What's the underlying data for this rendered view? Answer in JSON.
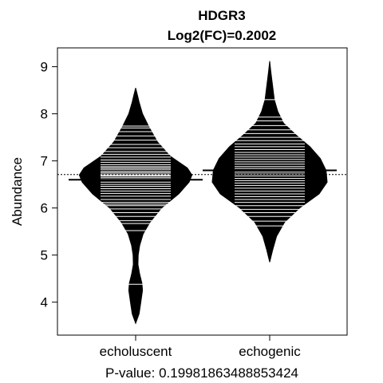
{
  "chart_data": {
    "type": "beanplot",
    "title": "HDGR3",
    "subtitle": "Log2(FC)=0.2002",
    "xlabel": "P-value: 0.19981863488853424",
    "ylabel": "Abundance",
    "ylim": [
      3.3,
      9.4
    ],
    "yticks": [
      4,
      5,
      6,
      7,
      8,
      9
    ],
    "categories": [
      "echoluscent",
      "echogenic"
    ],
    "overall_mean": 6.71,
    "groups": [
      {
        "name": "echoluscent",
        "mean": 6.6,
        "density": [
          [
            3.55,
            0.0
          ],
          [
            3.75,
            0.06
          ],
          [
            4.0,
            0.09
          ],
          [
            4.25,
            0.12
          ],
          [
            4.4,
            0.11
          ],
          [
            4.6,
            0.07
          ],
          [
            4.8,
            0.04
          ],
          [
            5.0,
            0.045
          ],
          [
            5.2,
            0.07
          ],
          [
            5.45,
            0.13
          ],
          [
            5.7,
            0.25
          ],
          [
            6.0,
            0.45
          ],
          [
            6.3,
            0.75
          ],
          [
            6.55,
            0.93
          ],
          [
            6.7,
            0.98
          ],
          [
            6.85,
            0.9
          ],
          [
            7.1,
            0.6
          ],
          [
            7.4,
            0.38
          ],
          [
            7.7,
            0.24
          ],
          [
            8.0,
            0.12
          ],
          [
            8.25,
            0.06
          ],
          [
            8.4,
            0.03
          ],
          [
            8.55,
            0.0
          ]
        ],
        "values": [
          4.38,
          5.52,
          5.67,
          5.73,
          5.82,
          5.9,
          5.98,
          6.05,
          6.08,
          6.12,
          6.18,
          6.25,
          6.31,
          6.36,
          6.41,
          6.46,
          6.5,
          6.55,
          6.6,
          6.62,
          6.65,
          6.68,
          6.7,
          6.72,
          6.75,
          6.78,
          6.82,
          6.85,
          6.88,
          6.92,
          6.97,
          7.02,
          7.08,
          7.14,
          7.2,
          7.28,
          7.35,
          7.44,
          7.53,
          7.62,
          7.7,
          7.74
        ]
      },
      {
        "name": "echogenic",
        "mean": 6.8,
        "density": [
          [
            4.85,
            0.0
          ],
          [
            5.1,
            0.05
          ],
          [
            5.4,
            0.12
          ],
          [
            5.7,
            0.26
          ],
          [
            6.0,
            0.52
          ],
          [
            6.3,
            0.86
          ],
          [
            6.55,
            1.0
          ],
          [
            6.8,
            0.98
          ],
          [
            7.05,
            0.88
          ],
          [
            7.3,
            0.7
          ],
          [
            7.55,
            0.46
          ],
          [
            7.8,
            0.24
          ],
          [
            8.05,
            0.14
          ],
          [
            8.3,
            0.08
          ],
          [
            8.6,
            0.05
          ],
          [
            8.9,
            0.02
          ],
          [
            9.12,
            0.0
          ]
        ],
        "values": [
          5.62,
          5.72,
          5.82,
          5.9,
          5.97,
          6.05,
          6.12,
          6.18,
          6.24,
          6.3,
          6.36,
          6.42,
          6.48,
          6.53,
          6.58,
          6.63,
          6.68,
          6.72,
          6.76,
          6.8,
          6.84,
          6.88,
          6.93,
          6.98,
          7.03,
          7.08,
          7.13,
          7.18,
          7.24,
          7.3,
          7.36,
          7.43,
          7.5,
          7.58,
          7.66,
          7.75,
          7.85,
          7.93,
          8.3
        ]
      }
    ]
  }
}
